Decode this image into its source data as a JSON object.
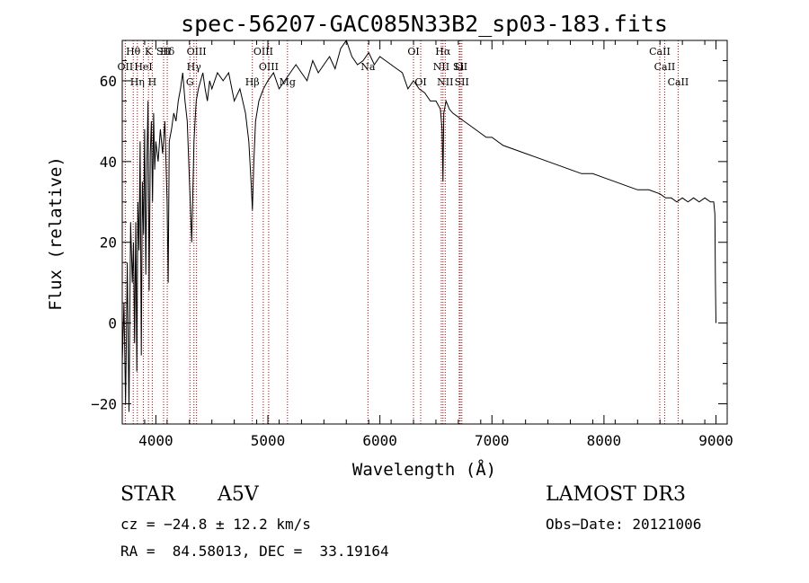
{
  "chart_data": {
    "type": "line",
    "title": "spec-56207-GAC085N33B2_sp03-183.fits",
    "xlabel": "Wavelength (Å)",
    "ylabel": "Flux (relative)",
    "xlim": [
      3700,
      9100
    ],
    "ylim": [
      -25,
      70
    ],
    "xticks": [
      4000,
      5000,
      6000,
      7000,
      8000,
      9000
    ],
    "yticks": [
      -20,
      0,
      20,
      40,
      60
    ],
    "series": [
      {
        "name": "flux",
        "x": [
          3700,
          3715,
          3730,
          3745,
          3760,
          3775,
          3790,
          3800,
          3810,
          3820,
          3830,
          3840,
          3850,
          3860,
          3870,
          3880,
          3890,
          3900,
          3910,
          3920,
          3930,
          3940,
          3950,
          3960,
          3970,
          3980,
          3990,
          4000,
          4020,
          4040,
          4060,
          4080,
          4100,
          4110,
          4120,
          4140,
          4160,
          4180,
          4200,
          4220,
          4240,
          4260,
          4280,
          4300,
          4320,
          4340,
          4350,
          4360,
          4380,
          4400,
          4420,
          4440,
          4460,
          4480,
          4500,
          4550,
          4600,
          4650,
          4700,
          4750,
          4800,
          4830,
          4850,
          4862,
          4875,
          4890,
          4920,
          4960,
          5000,
          5050,
          5100,
          5150,
          5200,
          5250,
          5300,
          5350,
          5400,
          5450,
          5500,
          5550,
          5600,
          5650,
          5700,
          5750,
          5800,
          5850,
          5900,
          5950,
          6000,
          6050,
          6100,
          6150,
          6200,
          6250,
          6300,
          6350,
          6400,
          6450,
          6500,
          6540,
          6555,
          6563,
          6570,
          6590,
          6620,
          6650,
          6700,
          6750,
          6800,
          6850,
          6900,
          6950,
          7000,
          7100,
          7200,
          7300,
          7400,
          7500,
          7600,
          7700,
          7800,
          7900,
          8000,
          8100,
          8200,
          8300,
          8400,
          8500,
          8550,
          8600,
          8650,
          8700,
          8750,
          8800,
          8850,
          8900,
          8950,
          8980,
          8990,
          8995,
          9000
        ],
        "values": [
          -10,
          5,
          -20,
          15,
          -22,
          25,
          10,
          20,
          -5,
          25,
          -12,
          30,
          18,
          45,
          -8,
          35,
          22,
          48,
          12,
          40,
          55,
          8,
          42,
          50,
          30,
          52,
          38,
          45,
          40,
          48,
          42,
          50,
          30,
          10,
          45,
          48,
          52,
          50,
          55,
          58,
          62,
          55,
          50,
          35,
          20,
          45,
          50,
          55,
          58,
          60,
          62,
          58,
          55,
          60,
          58,
          62,
          60,
          62,
          55,
          58,
          52,
          45,
          35,
          28,
          40,
          50,
          55,
          58,
          60,
          62,
          58,
          60,
          62,
          64,
          62,
          60,
          65,
          62,
          64,
          66,
          63,
          68,
          70,
          66,
          64,
          65,
          67,
          64,
          66,
          65,
          64,
          63,
          62,
          58,
          60,
          58,
          57,
          55,
          55,
          53,
          48,
          35,
          52,
          55,
          53,
          52,
          51,
          50,
          49,
          48,
          47,
          46,
          46,
          44,
          43,
          42,
          41,
          40,
          39,
          38,
          37,
          37,
          36,
          35,
          34,
          33,
          33,
          32,
          31,
          31,
          30,
          31,
          30,
          31,
          30,
          31,
          30,
          30,
          27,
          10,
          0
        ]
      }
    ],
    "lines": [
      {
        "name": "Hθ",
        "x": 3798
      },
      {
        "name": "OII",
        "x": 3727
      },
      {
        "name": "Hη",
        "x": 3835
      },
      {
        "name": "HeI",
        "x": 3889
      },
      {
        "name": "K",
        "x": 3934
      },
      {
        "name": "H",
        "x": 3968
      },
      {
        "name": "SII",
        "x": 4069
      },
      {
        "name": "Hδ",
        "x": 4102
      },
      {
        "name": "OIII",
        "x": 4363
      },
      {
        "name": "Hγ",
        "x": 4340
      },
      {
        "name": "G",
        "x": 4304
      },
      {
        "name": "Hβ",
        "x": 4861
      },
      {
        "name": "OIII",
        "x": 4959
      },
      {
        "name": "OIII",
        "x": 5007
      },
      {
        "name": "Mg",
        "x": 5175
      },
      {
        "name": "Na",
        "x": 5893
      },
      {
        "name": "OI",
        "x": 6300
      },
      {
        "name": "OI",
        "x": 6364
      },
      {
        "name": "Hα",
        "x": 6563
      },
      {
        "name": "NII",
        "x": 6548
      },
      {
        "name": "NII",
        "x": 6583
      },
      {
        "name": "SII",
        "x": 6717
      },
      {
        "name": "SII",
        "x": 6731
      },
      {
        "name": "Li",
        "x": 6708
      },
      {
        "name": "CaII",
        "x": 8498
      },
      {
        "name": "CaII",
        "x": 8542
      },
      {
        "name": "CaII",
        "x": 8662
      }
    ],
    "line_label_rows": {
      "row1": [
        "Hθ",
        "K",
        "Hδ",
        "OIII",
        "OIII",
        "OI",
        "Hα",
        "SII",
        "CaII"
      ],
      "row2": [
        "OII",
        "HeI",
        "SII",
        "Hγ",
        "OIII",
        "Na",
        "NII",
        "Li",
        "CaII"
      ],
      "row3": [
        "Hη",
        "H",
        "G",
        "Hβ",
        "Mg",
        "OI",
        "NII",
        "SII",
        "CaII"
      ]
    }
  },
  "footer": {
    "object_class": "STAR",
    "subclass": "A5V",
    "survey": "LAMOST DR3",
    "cz": "cz = −24.8 ± 12.2 km/s",
    "obs_date": "Obs−Date: 20121006",
    "coords": "RA =  84.58013, DEC =  33.19164"
  }
}
